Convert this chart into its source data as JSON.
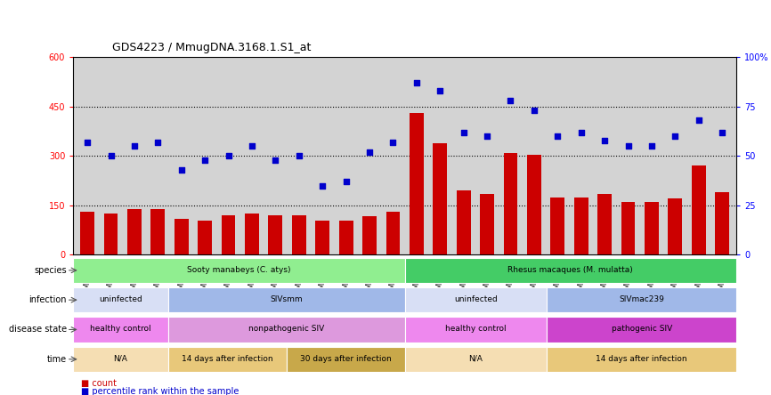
{
  "title": "GDS4223 / MmugDNA.3168.1.S1_at",
  "samples": [
    "GSM440057",
    "GSM440058",
    "GSM440059",
    "GSM440060",
    "GSM440061",
    "GSM440062",
    "GSM440063",
    "GSM440064",
    "GSM440065",
    "GSM440066",
    "GSM440067",
    "GSM440068",
    "GSM440069",
    "GSM440070",
    "GSM440071",
    "GSM440072",
    "GSM440073",
    "GSM440074",
    "GSM440075",
    "GSM440076",
    "GSM440077",
    "GSM440078",
    "GSM440079",
    "GSM440080",
    "GSM440081",
    "GSM440082",
    "GSM440083",
    "GSM440084"
  ],
  "counts": [
    130,
    125,
    140,
    138,
    110,
    105,
    120,
    125,
    120,
    120,
    105,
    105,
    118,
    130,
    430,
    340,
    195,
    185,
    310,
    305,
    175,
    175,
    185,
    160,
    160,
    170,
    270,
    190
  ],
  "percentiles": [
    57,
    50,
    55,
    57,
    43,
    48,
    50,
    55,
    48,
    50,
    35,
    37,
    52,
    57,
    87,
    83,
    62,
    60,
    78,
    73,
    60,
    62,
    58,
    55,
    55,
    60,
    68,
    62
  ],
  "ylim_left": [
    0,
    600
  ],
  "ylim_right": [
    0,
    100
  ],
  "yticks_left": [
    0,
    150,
    300,
    450,
    600
  ],
  "yticks_right": [
    0,
    25,
    50,
    75,
    100
  ],
  "bar_color": "#cc0000",
  "dot_color": "#0000cc",
  "bg_color": "#d3d3d3",
  "species_row": {
    "label": "species",
    "segments": [
      {
        "text": "Sooty manabeys (C. atys)",
        "start": 0,
        "end": 14,
        "color": "#90ee90"
      },
      {
        "text": "Rhesus macaques (M. mulatta)",
        "start": 14,
        "end": 28,
        "color": "#44cc66"
      }
    ]
  },
  "infection_row": {
    "label": "infection",
    "segments": [
      {
        "text": "uninfected",
        "start": 0,
        "end": 4,
        "color": "#d8dff5"
      },
      {
        "text": "SIVsmm",
        "start": 4,
        "end": 14,
        "color": "#a0b8e8"
      },
      {
        "text": "uninfected",
        "start": 14,
        "end": 20,
        "color": "#d8dff5"
      },
      {
        "text": "SIVmac239",
        "start": 20,
        "end": 28,
        "color": "#a0b8e8"
      }
    ]
  },
  "disease_row": {
    "label": "disease state",
    "segments": [
      {
        "text": "healthy control",
        "start": 0,
        "end": 4,
        "color": "#ee88ee"
      },
      {
        "text": "nonpathogenic SIV",
        "start": 4,
        "end": 14,
        "color": "#dd99dd"
      },
      {
        "text": "healthy control",
        "start": 14,
        "end": 20,
        "color": "#ee88ee"
      },
      {
        "text": "pathogenic SIV",
        "start": 20,
        "end": 28,
        "color": "#cc44cc"
      }
    ]
  },
  "time_row": {
    "label": "time",
    "segments": [
      {
        "text": "N/A",
        "start": 0,
        "end": 4,
        "color": "#f5deb3"
      },
      {
        "text": "14 days after infection",
        "start": 4,
        "end": 9,
        "color": "#e8c87a"
      },
      {
        "text": "30 days after infection",
        "start": 9,
        "end": 14,
        "color": "#c8a84a"
      },
      {
        "text": "N/A",
        "start": 14,
        "end": 20,
        "color": "#f5deb3"
      },
      {
        "text": "14 days after infection",
        "start": 20,
        "end": 28,
        "color": "#e8c87a"
      }
    ]
  }
}
